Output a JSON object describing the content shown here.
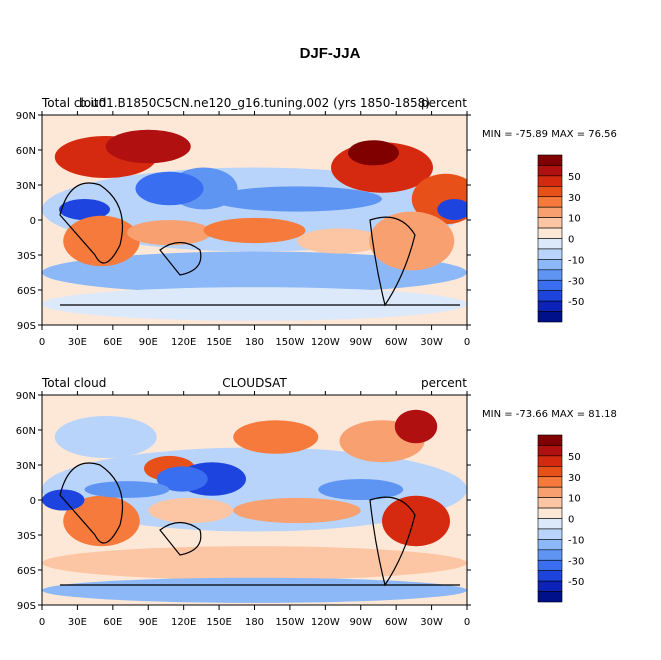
{
  "title": "DJF-JJA",
  "panels": [
    {
      "left": "Total cloud",
      "center": "b.it01.B1850C5CN.ne120_g16.tuning.002 (yrs 1850-1858)",
      "right": "percent",
      "stats": "MIN = -75.89 MAX =  76.56"
    },
    {
      "left": "Total cloud",
      "center": "CLOUDSAT",
      "right": "percent",
      "stats": "MIN = -73.66 MAX =  81.18"
    }
  ],
  "lat_ticks": [
    "90N",
    "60N",
    "30N",
    "0",
    "30S",
    "60S",
    "90S"
  ],
  "lon_ticks": [
    "0",
    "30E",
    "60E",
    "90E",
    "120E",
    "150E",
    "180",
    "150W",
    "120W",
    "90W",
    "60W",
    "30W",
    "0"
  ],
  "colorbar_labels": [
    50,
    30,
    10,
    0,
    -10,
    -30,
    -50
  ],
  "colorbar_colors": [
    "#800000",
    "#b01010",
    "#d62a10",
    "#e8501a",
    "#f57a3c",
    "#f9a070",
    "#fcc6a4",
    "#fde8d8",
    "#dce9fb",
    "#b8d4fb",
    "#8cb8f8",
    "#5f95f2",
    "#3a6ef0",
    "#1e44e0",
    "#0c22b8",
    "#00108a"
  ]
}
